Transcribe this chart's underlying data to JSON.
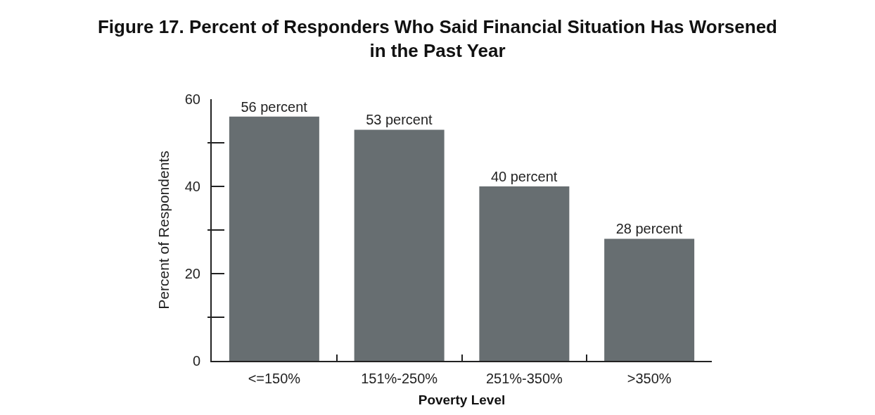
{
  "chart_data": {
    "type": "bar",
    "title": "Figure 17. Percent of Responders Who Said Financial Situation Has Worsened\nin the Past Year",
    "xlabel": "Poverty Level",
    "ylabel": "Percent of Respondents",
    "categories": [
      "<=150%",
      "151%-250%",
      "251%-350%",
      ">350%"
    ],
    "values": [
      56,
      53,
      40,
      28
    ],
    "value_labels": [
      "56 percent",
      "53 percent",
      "40 percent",
      "28 percent"
    ],
    "color": "#676e71",
    "ylim": [
      0,
      60
    ],
    "yticks": [
      0,
      {
        "value": 10,
        "label": null
      },
      20,
      {
        "value": 30,
        "label": null
      },
      40,
      {
        "value": 50,
        "label": null
      },
      60
    ]
  }
}
